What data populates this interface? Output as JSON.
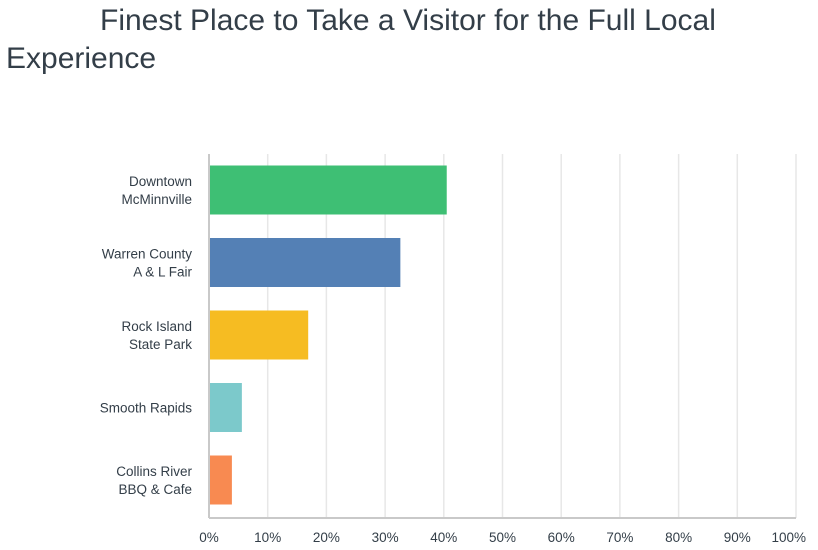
{
  "chart_data": {
    "type": "bar",
    "orientation": "horizontal",
    "title": "Finest Place to Take a Visitor for the Full Local Experience",
    "categories": [
      [
        "Downtown",
        "McMinnville"
      ],
      [
        "Warren County",
        "A & L Fair"
      ],
      [
        "Rock Island",
        "State Park"
      ],
      [
        "Smooth Rapids"
      ],
      [
        "Collins River",
        "BBQ & Cafe"
      ]
    ],
    "values": [
      40.5,
      32.6,
      16.9,
      5.6,
      3.9
    ],
    "colors": [
      "#3ebf74",
      "#5480b5",
      "#f6bc22",
      "#7cc9cb",
      "#f88a51"
    ],
    "xlim": [
      0,
      100
    ],
    "x_ticks": [
      0,
      10,
      20,
      30,
      40,
      50,
      60,
      70,
      80,
      90,
      100
    ],
    "x_tick_labels": [
      "0%",
      "10%",
      "20%",
      "30%",
      "40%",
      "50%",
      "60%",
      "70%",
      "80%",
      "90%",
      "100%"
    ],
    "xlabel": "",
    "ylabel": "",
    "grid": true,
    "legend": "none"
  }
}
